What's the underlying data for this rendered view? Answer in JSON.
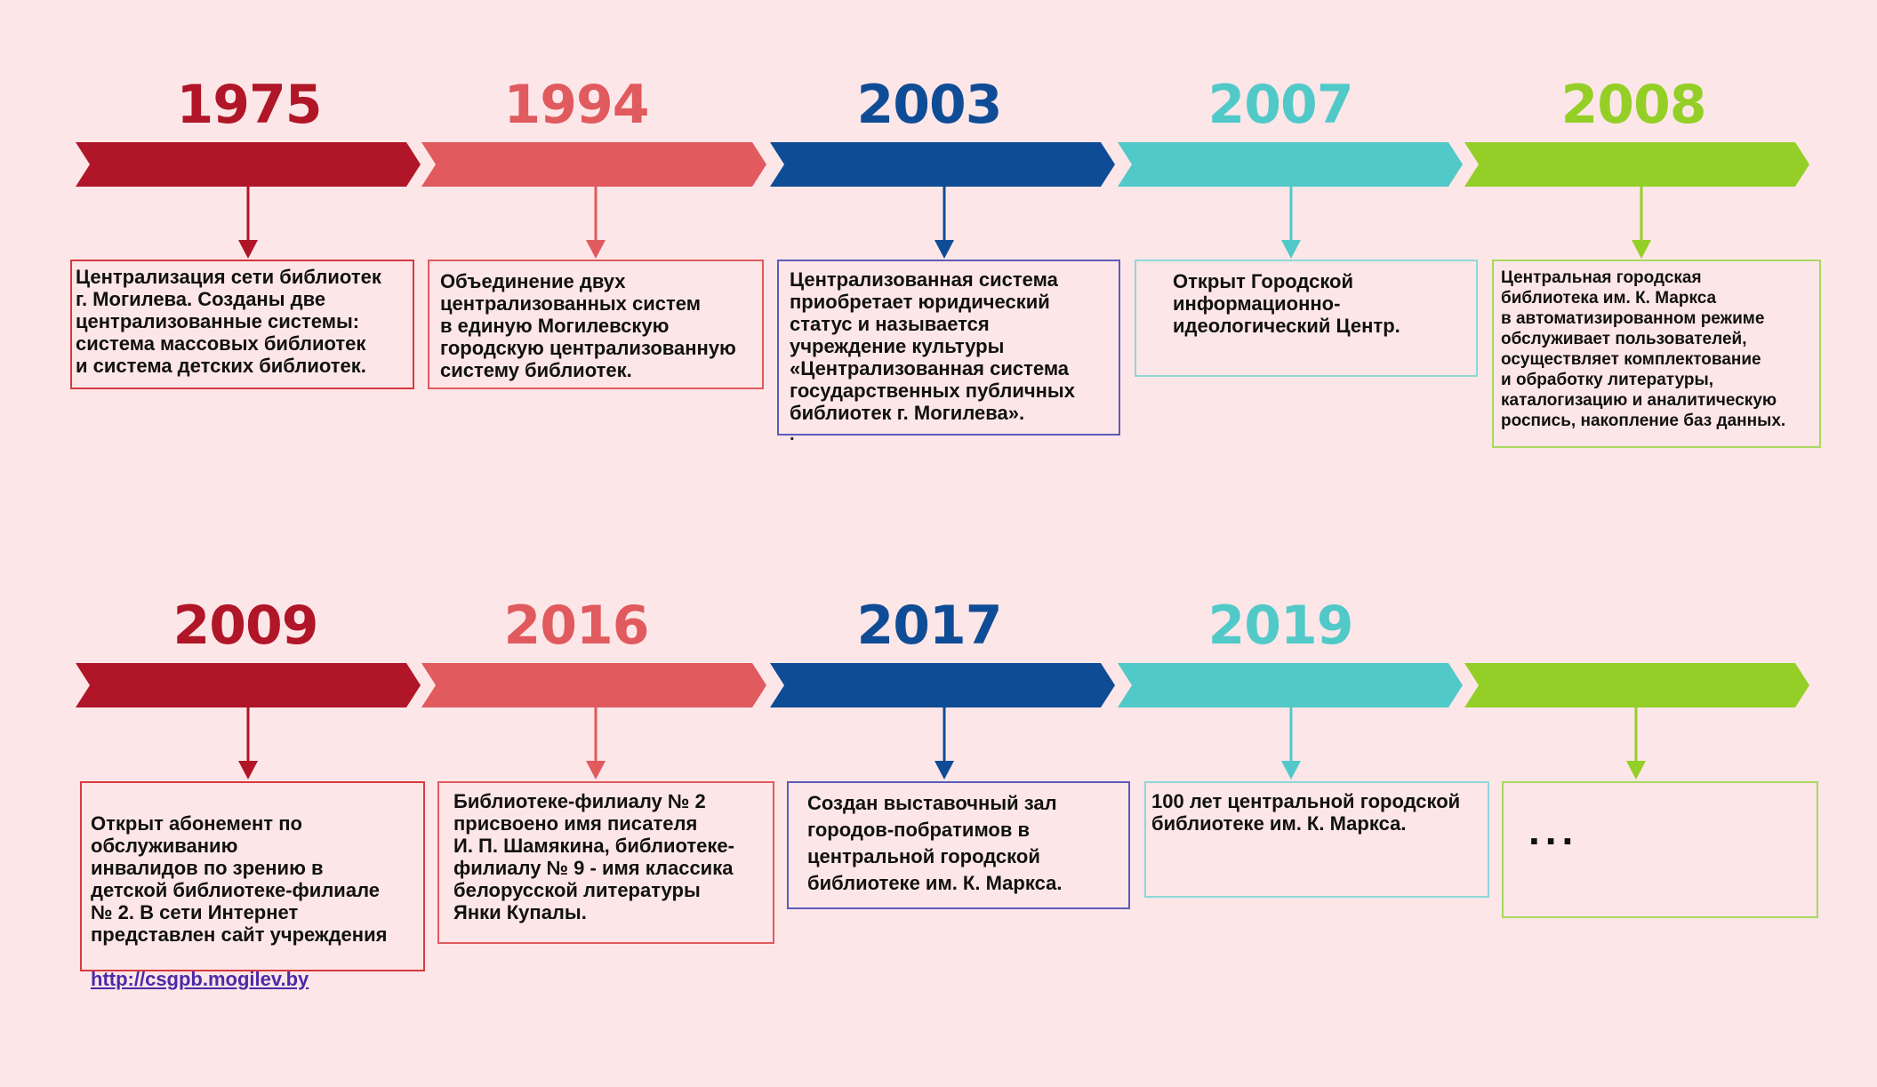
{
  "colors": {
    "background": "#fde6e8",
    "segment_1": "#b01627",
    "segment_2": "#e05a5e",
    "segment_3": "#0f4c96",
    "segment_4": "#52c9c9",
    "segment_5": "#94cf27",
    "link": "#4b2aa8"
  },
  "row1": {
    "years": [
      "1975",
      "1994",
      "2003",
      "2007",
      "2008"
    ],
    "texts": [
      "Централизация сети библиотек\nг. Могилева. Созданы две\nцентрализованные системы:\nсистема массовых библиотек\nи система детских библиотек.",
      "Объединение двух\nцентрализованных систем\nв единую Могилевскую\nгородскую централизованную\nсистему библиотек.",
      "Централизованная система\nприобретает юридический\nстатус и называется\nучреждение культуры\n«Централизованная система\nгосударственных публичных\nбиблиотек г. Могилева».",
      "Открыт Городской\nинформационно-\nидеологический Центр.",
      "Центральная городская\nбиблиотека им. К. Маркса\nв автоматизированном режиме\nобслуживает пользователей,\nосуществляет комплектование\nи обработку литературы,\nкаталогизацию и аналитическую\nроспись, накопление баз данных."
    ],
    "stray_mark": "."
  },
  "row2": {
    "years": [
      "2009",
      "2016",
      "2017",
      "2019",
      ""
    ],
    "texts": [
      "Открыт абонемент по\nобслуживанию\nинвалидов по зрению в\nдетской библиотеке-филиале\n№ 2. В сети Интернет\nпредставлен сайт учреждения",
      "Библиотеке-филиалу № 2\nприсвоено имя писателя\nИ. П. Шамякина, библиотеке-\nфилиалу № 9 - имя классика\nбелорусской литературы\nЯнки Купалы.",
      "Создан выставочный зал\nгородов-побратимов в\nцентральной городской\nбиблиотеке им. К. Маркса.",
      "100 лет центральной городской\nбиблиотеке им. К. Маркса.",
      "..."
    ],
    "link_text": "http://csgpb.mogilev.by"
  }
}
